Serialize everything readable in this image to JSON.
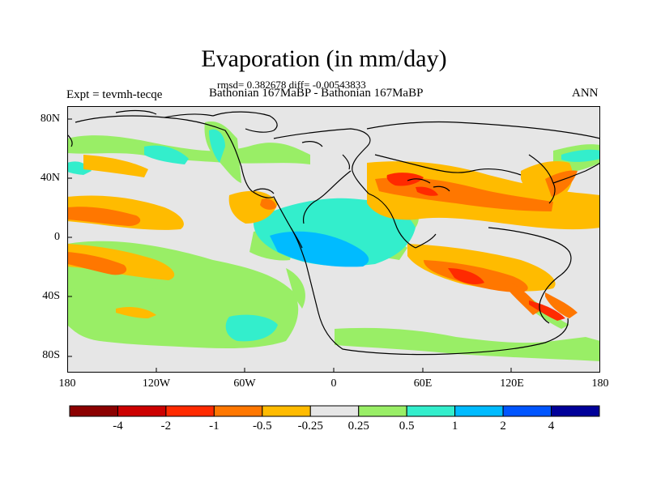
{
  "title": "Evaporation (in mm/day)",
  "stats": "rmsd= 0.382678 diff= -0.00543833",
  "expt": "Expt = tevmh-tecqe",
  "subtitle": "Bathonian 167MaBP - Bathonian 167MaBP",
  "season": "ANN",
  "map": {
    "lat_labels": [
      "80N",
      "40N",
      "0",
      "40S",
      "80S"
    ],
    "lon_labels": [
      "180",
      "120W",
      "60W",
      "0",
      "60E",
      "120E",
      "180"
    ]
  },
  "colorbar": {
    "colors": [
      "#8b0000",
      "#cc0000",
      "#ff2a00",
      "#ff7700",
      "#ffbb00",
      "#e6e6e6",
      "#99ee66",
      "#33eecc",
      "#00bbff",
      "#0055ff",
      "#000099"
    ],
    "labels": [
      "-4",
      "-2",
      "-1",
      "-0.5",
      "-0.25",
      "0.25",
      "0.5",
      "1",
      "2",
      "4"
    ]
  }
}
